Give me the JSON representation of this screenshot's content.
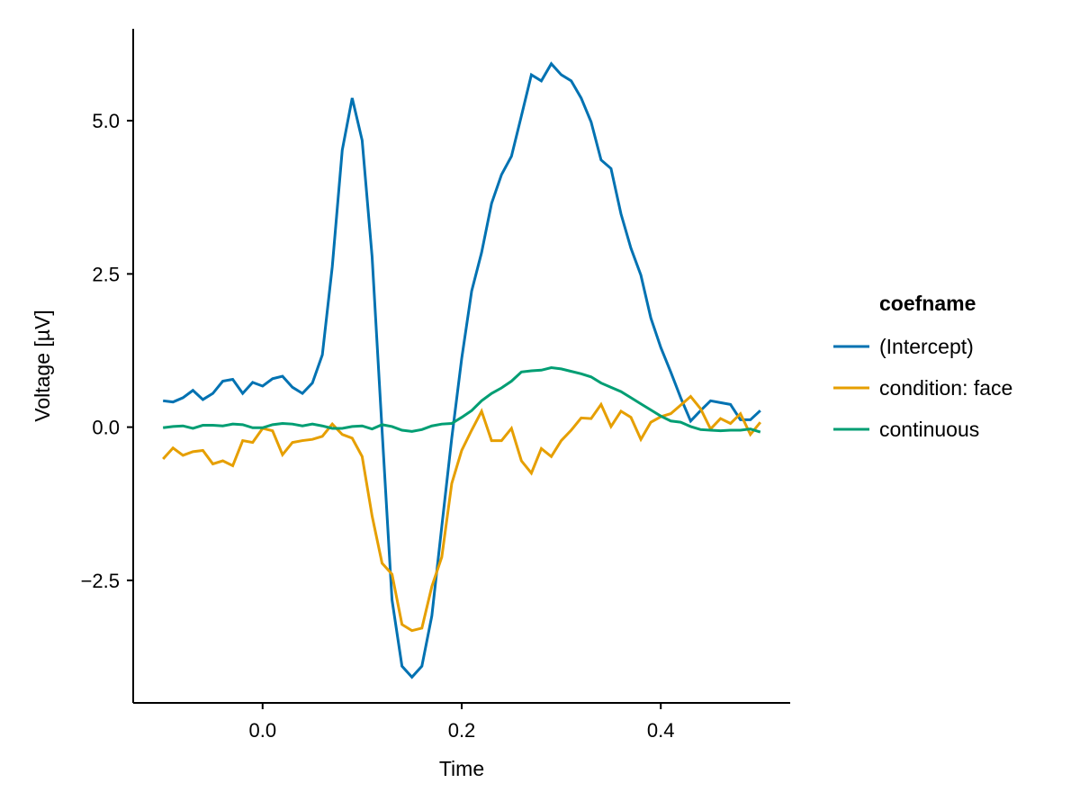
{
  "chart_data": {
    "type": "line",
    "title": "",
    "xlabel": "Time",
    "ylabel": "Voltage [µV]",
    "xlim": [
      -0.13,
      0.53
    ],
    "ylim": [
      -4.5,
      6.5
    ],
    "xticks": [
      0.0,
      0.2,
      0.4
    ],
    "xtick_labels": [
      "0.0",
      "0.2",
      "0.4"
    ],
    "yticks": [
      -2.5,
      0.0,
      2.5,
      5.0
    ],
    "ytick_labels": [
      "−2.5",
      "0.0",
      "2.5",
      "5.0"
    ],
    "grid": false,
    "legend": {
      "title": "coefname",
      "position": "right"
    },
    "x": [
      -0.1,
      -0.09,
      -0.08,
      -0.07,
      -0.06,
      -0.05,
      -0.04,
      -0.03,
      -0.02,
      -0.01,
      0.0,
      0.01,
      0.02,
      0.03,
      0.04,
      0.05,
      0.06,
      0.07,
      0.08,
      0.09,
      0.1,
      0.11,
      0.12,
      0.13,
      0.14,
      0.15,
      0.16,
      0.17,
      0.18,
      0.19,
      0.2,
      0.21,
      0.22,
      0.23,
      0.24,
      0.25,
      0.26,
      0.27,
      0.28,
      0.29,
      0.3,
      0.31,
      0.32,
      0.33,
      0.34,
      0.35,
      0.36,
      0.37,
      0.38,
      0.39,
      0.4,
      0.41,
      0.42,
      0.43,
      0.44,
      0.45,
      0.46,
      0.47,
      0.48,
      0.49,
      0.5
    ],
    "series": [
      {
        "name": "(Intercept)",
        "color": "#0072B2",
        "values": [
          0.43,
          0.41,
          0.48,
          0.6,
          0.45,
          0.55,
          0.75,
          0.78,
          0.55,
          0.73,
          0.67,
          0.79,
          0.83,
          0.65,
          0.55,
          0.72,
          1.18,
          2.62,
          4.52,
          5.37,
          4.68,
          2.78,
          -0.05,
          -2.82,
          -3.9,
          -4.08,
          -3.9,
          -3.08,
          -1.62,
          -0.18,
          1.12,
          2.22,
          2.85,
          3.65,
          4.12,
          4.42,
          5.08,
          5.75,
          5.65,
          5.93,
          5.75,
          5.65,
          5.37,
          4.98,
          4.36,
          4.22,
          3.48,
          2.92,
          2.48,
          1.78,
          1.3,
          0.9,
          0.48,
          0.1,
          0.27,
          0.43,
          0.4,
          0.37,
          0.12,
          0.12,
          0.27
        ]
      },
      {
        "name": "condition: face",
        "color": "#E69F00",
        "values": [
          -0.52,
          -0.34,
          -0.46,
          -0.4,
          -0.38,
          -0.6,
          -0.55,
          -0.63,
          -0.22,
          -0.25,
          -0.02,
          -0.06,
          -0.45,
          -0.25,
          -0.22,
          -0.2,
          -0.15,
          0.05,
          -0.12,
          -0.18,
          -0.48,
          -1.45,
          -2.22,
          -2.4,
          -3.22,
          -3.32,
          -3.28,
          -2.6,
          -2.12,
          -0.92,
          -0.38,
          -0.05,
          0.26,
          -0.22,
          -0.22,
          -0.02,
          -0.55,
          -0.75,
          -0.35,
          -0.48,
          -0.22,
          -0.05,
          0.15,
          0.14,
          0.37,
          0.01,
          0.26,
          0.16,
          -0.2,
          0.08,
          0.17,
          0.22,
          0.36,
          0.5,
          0.3,
          -0.03,
          0.14,
          0.06,
          0.22,
          -0.12,
          0.08
        ]
      },
      {
        "name": "continuous",
        "color": "#009E73",
        "values": [
          -0.01,
          0.01,
          0.02,
          -0.02,
          0.03,
          0.03,
          0.02,
          0.05,
          0.04,
          -0.01,
          -0.01,
          0.04,
          0.06,
          0.05,
          0.02,
          0.05,
          0.02,
          -0.02,
          -0.02,
          0.01,
          0.02,
          -0.03,
          0.04,
          0.01,
          -0.05,
          -0.07,
          -0.04,
          0.02,
          0.05,
          0.06,
          0.16,
          0.27,
          0.43,
          0.55,
          0.64,
          0.75,
          0.9,
          0.92,
          0.93,
          0.97,
          0.95,
          0.91,
          0.87,
          0.82,
          0.72,
          0.65,
          0.58,
          0.48,
          0.38,
          0.28,
          0.18,
          0.1,
          0.08,
          0.01,
          -0.04,
          -0.05,
          -0.06,
          -0.05,
          -0.05,
          -0.03,
          -0.08
        ]
      }
    ]
  }
}
